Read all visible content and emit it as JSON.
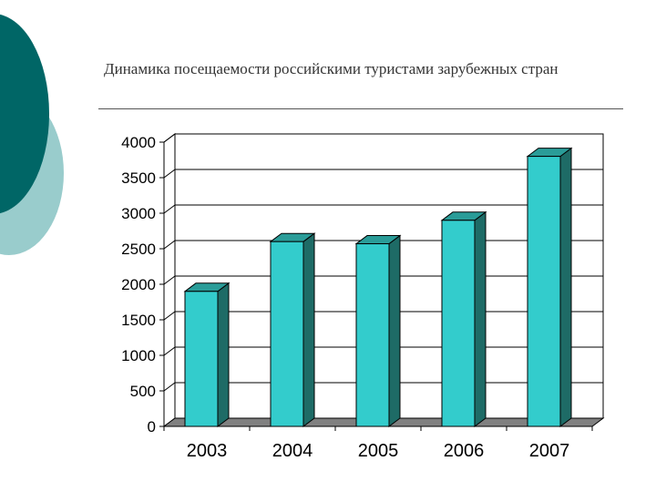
{
  "slide": {
    "title": "Динамика посещаемости российскими туристами зарубежных стран"
  },
  "colors": {
    "bar_front": "#33CCCC",
    "bar_side": "#1E6B66",
    "bar_top": "#2A9C98",
    "floor": "#808080",
    "deco_dark": "#006666",
    "deco_light": "#99CCCC"
  },
  "chart_data": {
    "type": "bar",
    "categories": [
      "2003",
      "2004",
      "2005",
      "2006",
      "2007"
    ],
    "values": [
      1900,
      2600,
      2570,
      2900,
      3800
    ],
    "ylim": [
      0,
      4000
    ],
    "yticks": [
      "0",
      "500",
      "1000",
      "1500",
      "2000",
      "2500",
      "3000",
      "3500",
      "4000"
    ],
    "grid": true,
    "legend": "none",
    "style": "3d-column"
  }
}
